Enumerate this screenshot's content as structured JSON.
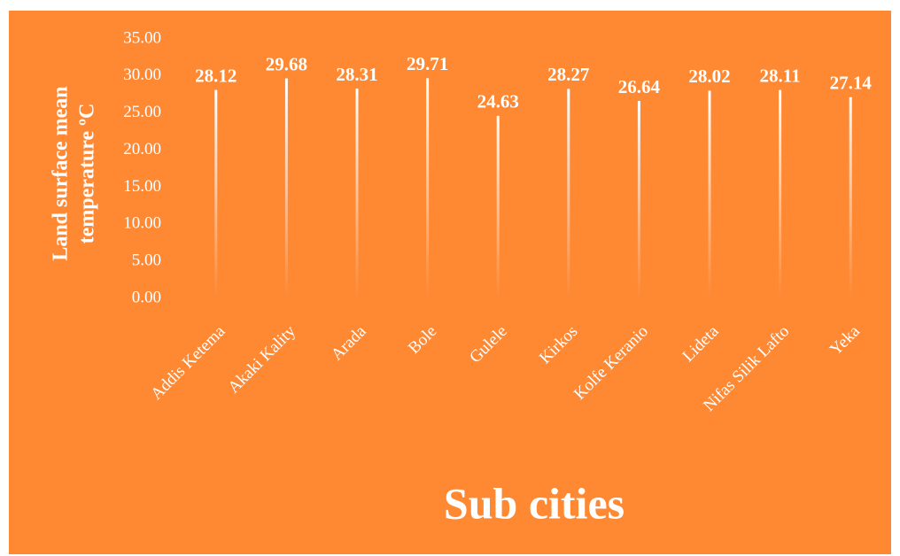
{
  "chart_data": {
    "type": "bar",
    "xlabel": "Sub cities",
    "ylabel": [
      "Land surface mean",
      "temperature ºC"
    ],
    "categories": [
      "Addis Ketema",
      "Akaki Kality",
      "Arada",
      "Bole",
      "Gulele",
      "Kirkos",
      "Kolfe Keranio",
      "Lideta",
      "Nifas Silik Lafto",
      "Yeka"
    ],
    "values": [
      28.12,
      29.68,
      28.31,
      29.71,
      24.63,
      28.27,
      26.64,
      28.02,
      28.11,
      27.14
    ],
    "color": "#ffffff",
    "background": "#ff8833",
    "ylim": [
      0,
      35
    ],
    "yticks": [
      {
        "value": 0,
        "label": "0.00"
      },
      {
        "value": 5,
        "label": "5.00"
      },
      {
        "value": 10,
        "label": "10.00"
      },
      {
        "value": 15,
        "label": "15.00"
      },
      {
        "value": 20,
        "label": "20.00"
      },
      {
        "value": 25,
        "label": "25.00"
      },
      {
        "value": 30,
        "label": "30.00"
      },
      {
        "value": 35,
        "label": "35.00"
      }
    ],
    "grid": false
  }
}
